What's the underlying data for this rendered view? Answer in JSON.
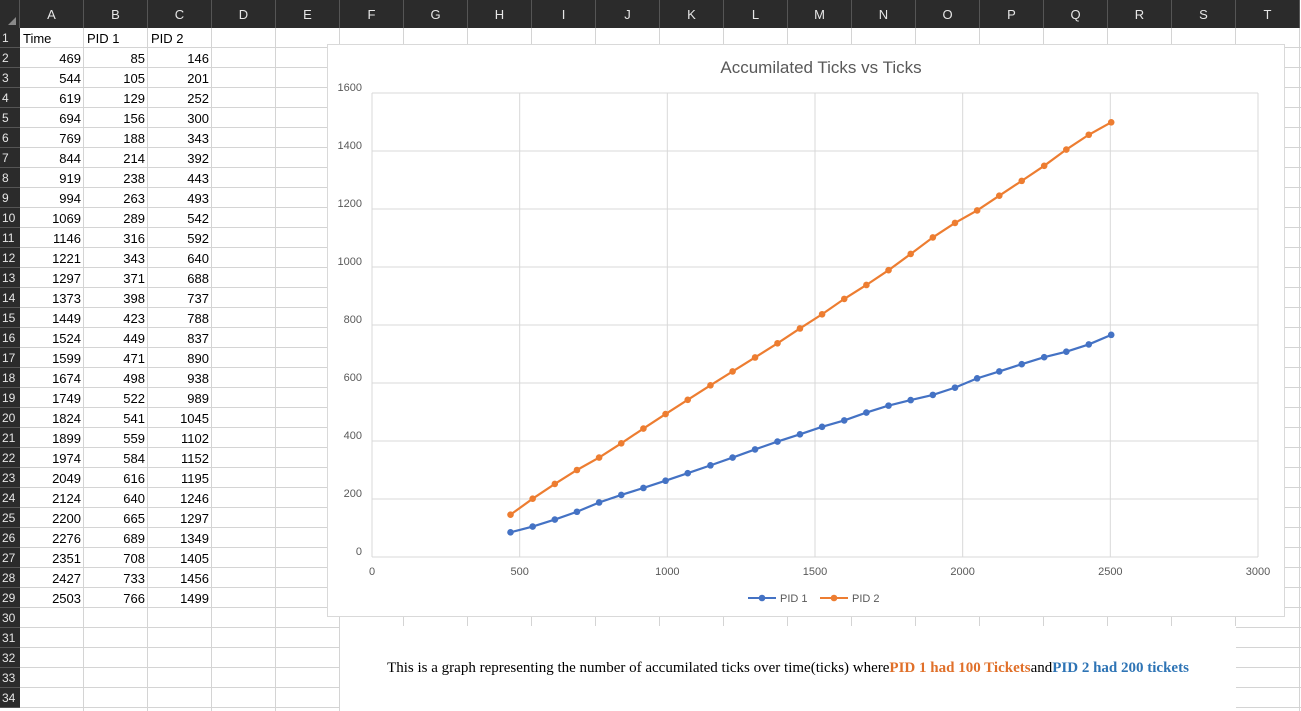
{
  "spreadsheet": {
    "columns": [
      "A",
      "B",
      "C",
      "D",
      "E",
      "F",
      "G",
      "H",
      "I",
      "J",
      "K",
      "L",
      "M",
      "N",
      "O",
      "P",
      "Q",
      "R",
      "S",
      "T"
    ],
    "headers": [
      "Time",
      "PID 1",
      "PID 2"
    ],
    "rows": [
      [
        469,
        85,
        146
      ],
      [
        544,
        105,
        201
      ],
      [
        619,
        129,
        252
      ],
      [
        694,
        156,
        300
      ],
      [
        769,
        188,
        343
      ],
      [
        844,
        214,
        392
      ],
      [
        919,
        238,
        443
      ],
      [
        994,
        263,
        493
      ],
      [
        1069,
        289,
        542
      ],
      [
        1146,
        316,
        592
      ],
      [
        1221,
        343,
        640
      ],
      [
        1297,
        371,
        688
      ],
      [
        1373,
        398,
        737
      ],
      [
        1449,
        423,
        788
      ],
      [
        1524,
        449,
        837
      ],
      [
        1599,
        471,
        890
      ],
      [
        1674,
        498,
        938
      ],
      [
        1749,
        522,
        989
      ],
      [
        1824,
        541,
        1045
      ],
      [
        1899,
        559,
        1102
      ],
      [
        1974,
        584,
        1152
      ],
      [
        2049,
        616,
        1195
      ],
      [
        2124,
        640,
        1246
      ],
      [
        2200,
        665,
        1297
      ],
      [
        2276,
        689,
        1349
      ],
      [
        2351,
        708,
        1405
      ],
      [
        2427,
        733,
        1456
      ],
      [
        2503,
        766,
        1499
      ]
    ],
    "row_numbers": [
      "1",
      "2",
      "3",
      "4",
      "5",
      "6",
      "7",
      "8",
      "9",
      "10",
      "11",
      "12",
      "13",
      "14",
      "15",
      "16",
      "17",
      "18",
      "19",
      "20",
      "21",
      "22",
      "23",
      "24",
      "25",
      "26",
      "27",
      "28",
      "29",
      "30",
      "31",
      "32",
      "33",
      "34"
    ]
  },
  "chart_data": {
    "type": "scatter",
    "title": "Accumilated Ticks vs Ticks",
    "xlabel": "",
    "ylabel": "",
    "xlim": [
      0,
      3000
    ],
    "ylim": [
      0,
      1600
    ],
    "x_ticks": [
      "0",
      "500",
      "1000",
      "1500",
      "2000",
      "2500",
      "3000"
    ],
    "y_ticks": [
      "0",
      "200",
      "400",
      "600",
      "800",
      "1000",
      "1200",
      "1400",
      "1600"
    ],
    "grid": true,
    "legend_position": "bottom",
    "x": [
      469,
      544,
      619,
      694,
      769,
      844,
      919,
      994,
      1069,
      1146,
      1221,
      1297,
      1373,
      1449,
      1524,
      1599,
      1674,
      1749,
      1824,
      1899,
      1974,
      2049,
      2124,
      2200,
      2276,
      2351,
      2427,
      2503
    ],
    "series": [
      {
        "name": "PID 1",
        "color": "#4472c4",
        "values": [
          85,
          105,
          129,
          156,
          188,
          214,
          238,
          263,
          289,
          316,
          343,
          371,
          398,
          423,
          449,
          471,
          498,
          522,
          541,
          559,
          584,
          616,
          640,
          665,
          689,
          708,
          733,
          766
        ]
      },
      {
        "name": "PID 2",
        "color": "#ed7d31",
        "values": [
          146,
          201,
          252,
          300,
          343,
          392,
          443,
          493,
          542,
          592,
          640,
          688,
          737,
          788,
          837,
          890,
          938,
          989,
          1045,
          1102,
          1152,
          1195,
          1246,
          1297,
          1349,
          1405,
          1456,
          1499
        ]
      }
    ]
  },
  "caption": {
    "prefix": "This is a graph representing the number of accumilated ticks over time(ticks) where ",
    "pid1_text": "PID 1 had 100 Tickets",
    "middle": " and ",
    "pid2_text": "PID 2 had 200 tickets",
    "pid1_color": "#e0702a",
    "pid2_color": "#2e74b5"
  }
}
